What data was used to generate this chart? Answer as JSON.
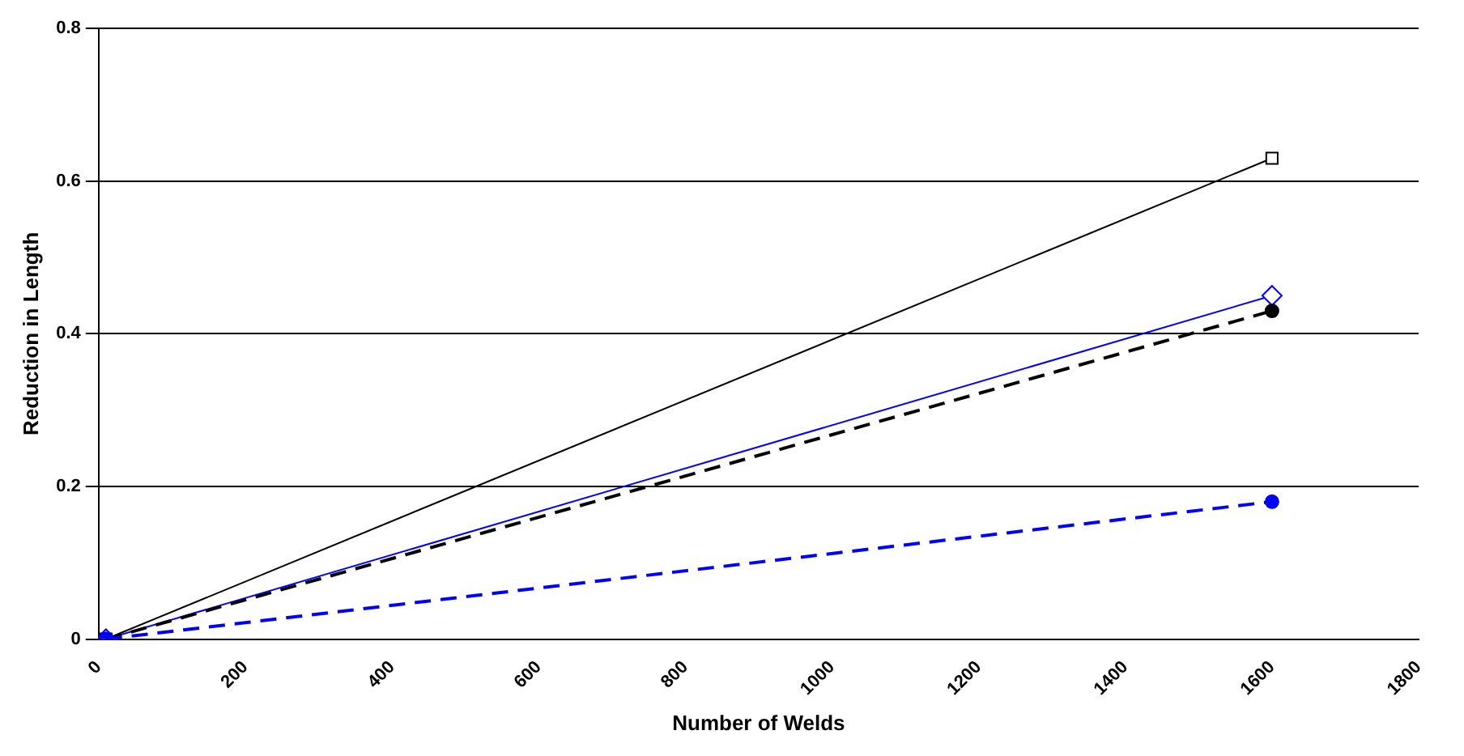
{
  "chart_data": {
    "type": "line",
    "xlabel": "Number of Welds",
    "ylabel": "Reduction in Length",
    "x": [
      10,
      1600
    ],
    "xlim": [
      0,
      1800
    ],
    "xticks": [
      0,
      200,
      400,
      600,
      800,
      1000,
      1200,
      1400,
      1600,
      1800
    ],
    "ylim": [
      0,
      0.8
    ],
    "yticks": [
      0,
      0.2,
      0.4,
      0.6,
      0.8
    ],
    "grid": "y",
    "legend": false,
    "series": [
      {
        "color": "#000000",
        "values": [
          0,
          0.63
        ],
        "marker": "square",
        "line_style": "solid"
      },
      {
        "color": "#0000ff",
        "values": [
          0,
          0.45
        ],
        "marker": "diamond",
        "line_style": "solid"
      },
      {
        "color": "#000000",
        "values": [
          0,
          0.43
        ],
        "marker": "circle",
        "line_style": "dashed"
      },
      {
        "color": "#0000ff",
        "values": [
          0,
          0.18
        ],
        "marker": "circle",
        "line_style": "dashed"
      }
    ]
  }
}
